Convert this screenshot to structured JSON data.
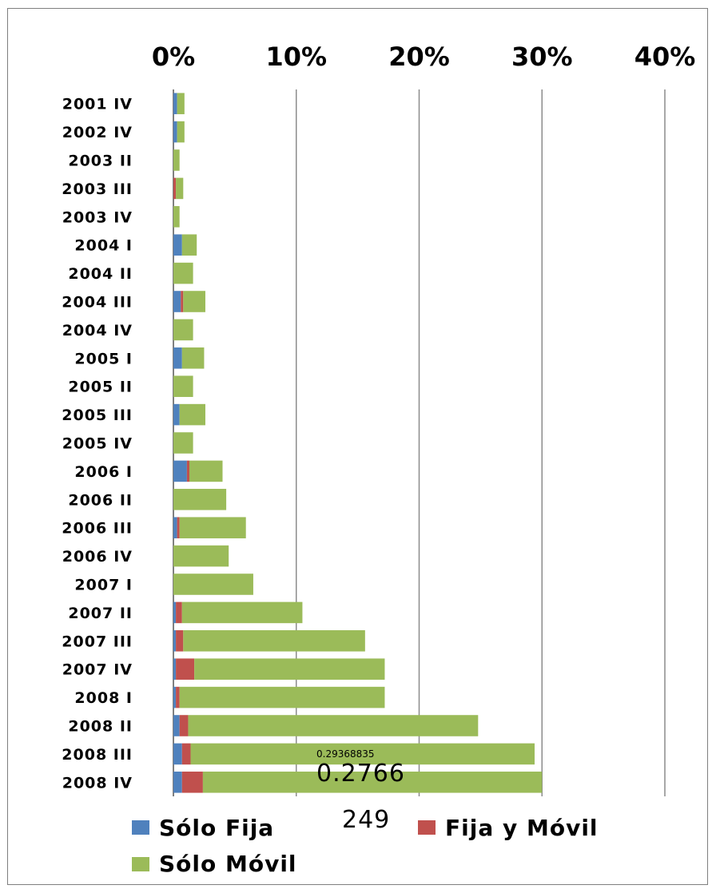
{
  "chart_data": {
    "type": "bar",
    "orientation": "horizontal",
    "stacked": true,
    "categories": [
      "2001 IV",
      "2002 IV",
      "2003 II",
      "2003 III",
      "2003 IV",
      "2004 I",
      "2004 II",
      "2004 III",
      "2004 IV",
      "2005 I",
      "2005 II",
      "2005 III",
      "2005 IV",
      "2006 I",
      "2006 II",
      "2006 III",
      "2006 IV",
      "2007 I",
      "2007 II",
      "2007 III",
      "2007 IV",
      "2008 I",
      "2008 II",
      "2008 III",
      "2008 IV"
    ],
    "series": [
      {
        "name": "Sólo Fija",
        "color": "#4f81bd",
        "values": [
          0.003,
          0.003,
          0.0,
          0.0,
          0.0,
          0.007,
          0.0,
          0.006,
          0.0,
          0.007,
          0.0,
          0.005,
          0.0,
          0.011,
          0.0,
          0.003,
          0.0,
          0.0,
          0.002,
          0.002,
          0.002,
          0.002,
          0.005,
          0.007,
          0.007
        ]
      },
      {
        "name": "Fija y Móvil",
        "color": "#c0504d",
        "values": [
          0.0,
          0.0,
          0.0,
          0.002,
          0.0,
          0.0,
          0.0,
          0.002,
          0.0,
          0.0,
          0.0,
          0.0,
          0.0,
          0.002,
          0.0,
          0.002,
          0.0,
          0.0,
          0.005,
          0.006,
          0.015,
          0.003,
          0.007,
          0.007,
          0.017
        ]
      },
      {
        "name": "Sólo Móvil",
        "color": "#9bbb59",
        "values": [
          0.006,
          0.006,
          0.005,
          0.006,
          0.005,
          0.012,
          0.016,
          0.018,
          0.016,
          0.018,
          0.016,
          0.021,
          0.016,
          0.027,
          0.043,
          0.054,
          0.045,
          0.065,
          0.098,
          0.148,
          0.155,
          0.167,
          0.236,
          0.28,
          0.276
        ]
      }
    ],
    "xlim": [
      0,
      0.4
    ],
    "xticks": [
      "0%",
      "10%",
      "20%",
      "30%",
      "40%"
    ],
    "tick_values": [
      0,
      0.1,
      0.2,
      0.3,
      0.4
    ],
    "grid": true,
    "legend_position": "bottom",
    "annotations": [
      "0.29368835",
      "0.2766",
      "249"
    ]
  }
}
